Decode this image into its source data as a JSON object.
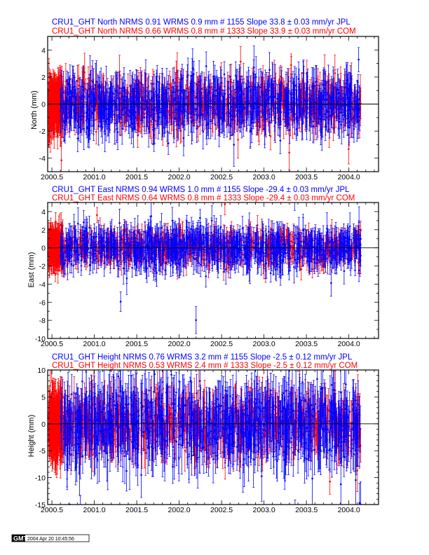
{
  "stamp": {
    "logo": "GMT",
    "timestamp": "2004 Apr 20 10:45:56"
  },
  "colors": {
    "jpl": "#0000ff",
    "com": "#ff0000",
    "axis": "#000000"
  },
  "chart_data": [
    {
      "type": "scatter",
      "title_jpl": "CRU1_GHT North NRMS 0.91 WRMS  0.9 mm # 1155 Slope   33.8 ±  0.03 mm/yr JPL",
      "title_com": "CRU1_GHT North NRMS 0.66 WRMS  0.8 mm # 1333 Slope   33.9 ±  0.03 mm/yr COM",
      "xlabel": "",
      "ylabel": "North (mm)",
      "xlim": [
        2000.45,
        2004.35
      ],
      "ylim": [
        -5,
        5
      ],
      "xticks": [
        "2000.5",
        "2001.0",
        "2001.5",
        "2002.0",
        "2002.5",
        "2003.0",
        "2003.5",
        "2004.0"
      ],
      "yticks": [
        "-4",
        "-2",
        "0",
        "2",
        "4"
      ],
      "series": [
        {
          "name": "JPL",
          "color": "#0000ff",
          "n": 1155,
          "wrms": 0.9,
          "nrms": 0.91
        },
        {
          "name": "COM",
          "color": "#ff0000",
          "n": 1333,
          "wrms": 0.8,
          "nrms": 0.66
        }
      ]
    },
    {
      "type": "scatter",
      "title_jpl": "CRU1_GHT East NRMS 0.94 WRMS  1.0 mm # 1155 Slope  -29.4 ±  0.03 mm/yr JPL",
      "title_com": "CRU1_GHT East NRMS 0.64 WRMS  0.8 mm # 1333 Slope  -29.4 ±  0.03 mm/yr COM",
      "xlabel": "",
      "ylabel": "East (mm)",
      "xlim": [
        2000.45,
        2004.35
      ],
      "ylim": [
        -10,
        5
      ],
      "xticks": [
        "2000.5",
        "2001.0",
        "2001.5",
        "2002.0",
        "2002.5",
        "2003.0",
        "2003.5",
        "2004.0"
      ],
      "yticks": [
        "-10",
        "-8",
        "-6",
        "-4",
        "-2",
        "0",
        "2",
        "4"
      ],
      "series": [
        {
          "name": "JPL",
          "color": "#0000ff",
          "n": 1155,
          "wrms": 1.0,
          "nrms": 0.94
        },
        {
          "name": "COM",
          "color": "#ff0000",
          "n": 1333,
          "wrms": 0.8,
          "nrms": 0.64
        }
      ]
    },
    {
      "type": "scatter",
      "title_jpl": "CRU1_GHT Height NRMS 0.76 WRMS  3.2 mm # 1155 Slope   -2.5 ±  0.12 mm/yr JPL",
      "title_com": "CRU1_GHT Height NRMS 0.53 WRMS  2.4 mm # 1333 Slope   -2.5 ±  0.12 mm/yr COM",
      "xlabel": "",
      "ylabel": "Height (mm)",
      "xlim": [
        2000.45,
        2004.35
      ],
      "ylim": [
        -15,
        10
      ],
      "xticks": [
        "2000.5",
        "2001.0",
        "2001.5",
        "2002.0",
        "2002.5",
        "2003.0",
        "2003.5",
        "2004.0"
      ],
      "yticks": [
        "-15",
        "-10",
        "-5",
        "0",
        "5",
        "10"
      ],
      "series": [
        {
          "name": "JPL",
          "color": "#0000ff",
          "n": 1155,
          "wrms": 3.2,
          "nrms": 0.76
        },
        {
          "name": "COM",
          "color": "#ff0000",
          "n": 1333,
          "wrms": 2.4,
          "nrms": 0.53
        }
      ]
    }
  ]
}
